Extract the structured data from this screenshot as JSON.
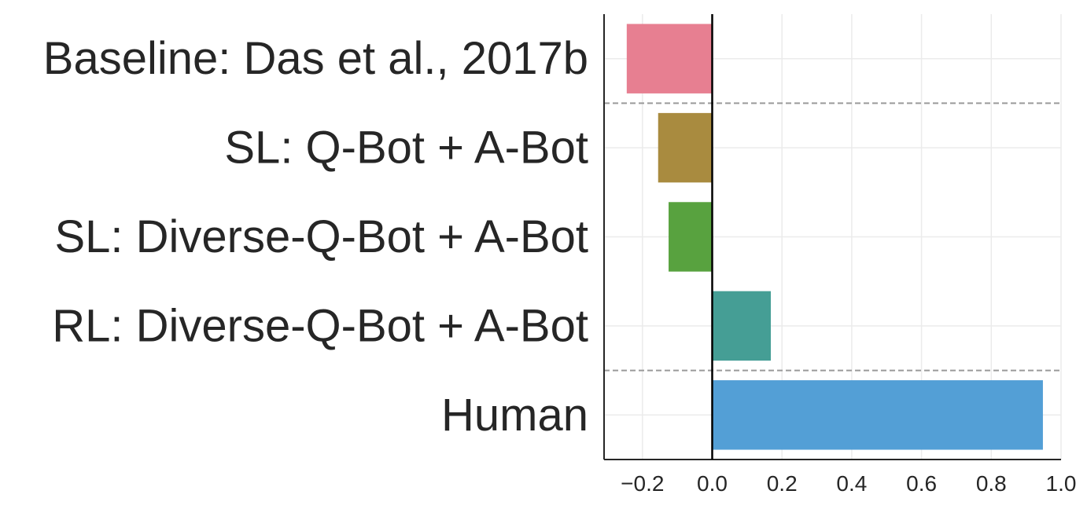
{
  "chart_data": {
    "type": "bar",
    "orientation": "horizontal",
    "title": "",
    "xlabel": "",
    "ylabel": "",
    "categories": [
      "Baseline: Das et al., 2017b",
      "SL: Q-Bot + A-Bot",
      "SL: Diverse-Q-Bot + A-Bot",
      "RL: Diverse-Q-Bot + A-Bot",
      "Human"
    ],
    "values": [
      -0.245,
      -0.155,
      -0.125,
      0.168,
      0.948
    ],
    "colors": [
      "#e77f91",
      "#a98b3f",
      "#58a23f",
      "#459e95",
      "#539fd6"
    ],
    "xlim": [
      -0.31,
      1.0
    ],
    "xticks": [
      -0.2,
      0.0,
      0.2,
      0.4,
      0.6,
      0.8,
      1.0
    ],
    "xtick_labels": [
      "−0.2",
      "0.0",
      "0.2",
      "0.4",
      "0.6",
      "0.8",
      "1.0"
    ],
    "grid": true,
    "zero_line": true,
    "group_separators_after": [
      0,
      3
    ]
  }
}
